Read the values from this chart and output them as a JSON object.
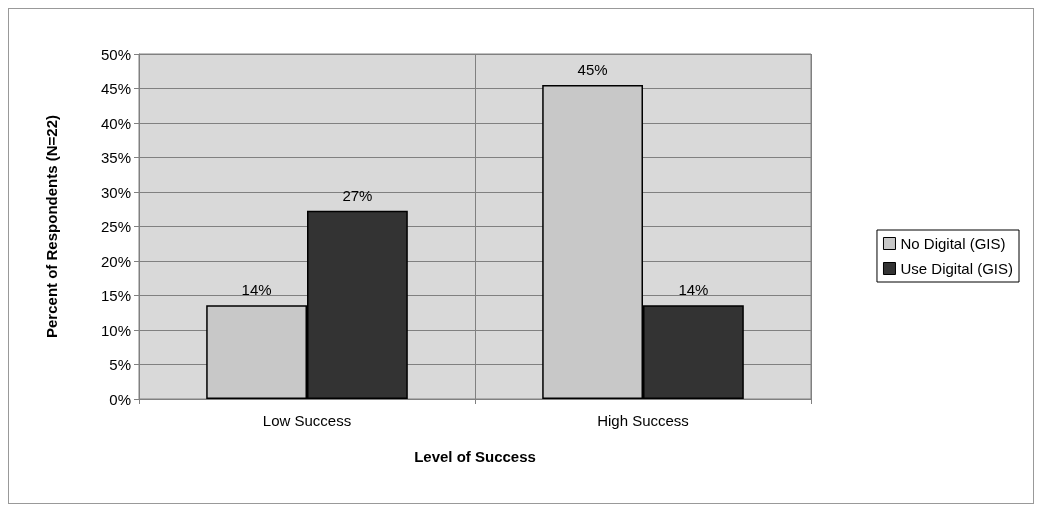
{
  "chart_data": {
    "type": "bar",
    "xlabel": "Level of Success",
    "ylabel": "Percent of Respondents (N=22)",
    "categories": [
      "Low Success",
      "High Success"
    ],
    "series": [
      {
        "name": "No Digital (GIS)",
        "color": "#c8c8c8",
        "values": [
          13.6,
          45.5
        ],
        "value_labels": [
          "14%",
          "45%"
        ]
      },
      {
        "name": "Use Digital (GIS)",
        "color": "#333333",
        "values": [
          27.3,
          13.6
        ],
        "value_labels": [
          "27%",
          "14%"
        ]
      }
    ],
    "ylim": [
      0,
      50
    ],
    "yticks": [
      {
        "value": 0,
        "label": "0%"
      },
      {
        "value": 5,
        "label": "5%"
      },
      {
        "value": 10,
        "label": "10%"
      },
      {
        "value": 15,
        "label": "15%"
      },
      {
        "value": 20,
        "label": "20%"
      },
      {
        "value": 25,
        "label": "25%"
      },
      {
        "value": 30,
        "label": "30%"
      },
      {
        "value": 35,
        "label": "35%"
      },
      {
        "value": 40,
        "label": "40%"
      },
      {
        "value": 45,
        "label": "45%"
      },
      {
        "value": 50,
        "label": "50%"
      }
    ],
    "grid": true,
    "legend": "right"
  }
}
